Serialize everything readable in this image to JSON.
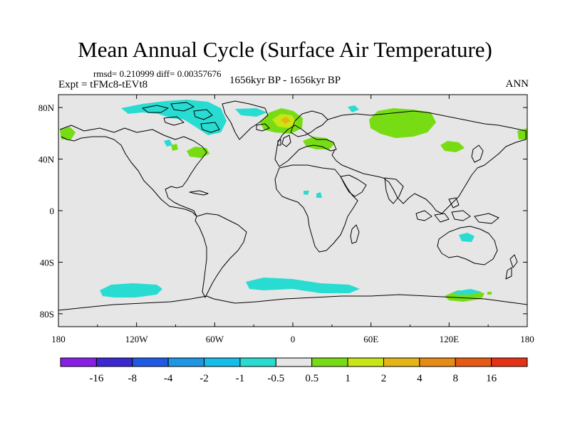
{
  "title": "Mean Annual Cycle (Surface Air Temperature)",
  "stats": "rmsd= 0.210999 diff= 0.00357676",
  "experiment": "Expt = tFMc8-tEVt8",
  "period": "1656kyr BP - 1656kyr BP",
  "season": "ANN",
  "lat_ticks": [
    {
      "value": 80,
      "label": "80N"
    },
    {
      "value": 40,
      "label": "40N"
    },
    {
      "value": 0,
      "label": "0"
    },
    {
      "value": -40,
      "label": "40S"
    },
    {
      "value": -80,
      "label": "80S"
    }
  ],
  "lon_ticks": [
    {
      "value": -180,
      "label": "180"
    },
    {
      "value": -120,
      "label": "120W"
    },
    {
      "value": -60,
      "label": "60W"
    },
    {
      "value": 0,
      "label": "0"
    },
    {
      "value": 60,
      "label": "60E"
    },
    {
      "value": 120,
      "label": "120E"
    },
    {
      "value": 180,
      "label": "180"
    }
  ],
  "legend": {
    "colors": [
      "#8a1ee6",
      "#3c28d2",
      "#1e5ae6",
      "#1e96e6",
      "#14beeb",
      "#28dcd2",
      "#e6e6e6",
      "#78dc14",
      "#c8e614",
      "#e6b414",
      "#e68c14",
      "#e65a14",
      "#e63214"
    ],
    "labels": [
      "-16",
      "-8",
      "-4",
      "-2",
      "-1",
      "-0.5",
      "0.5",
      "1",
      "2",
      "4",
      "8",
      "16"
    ]
  }
}
